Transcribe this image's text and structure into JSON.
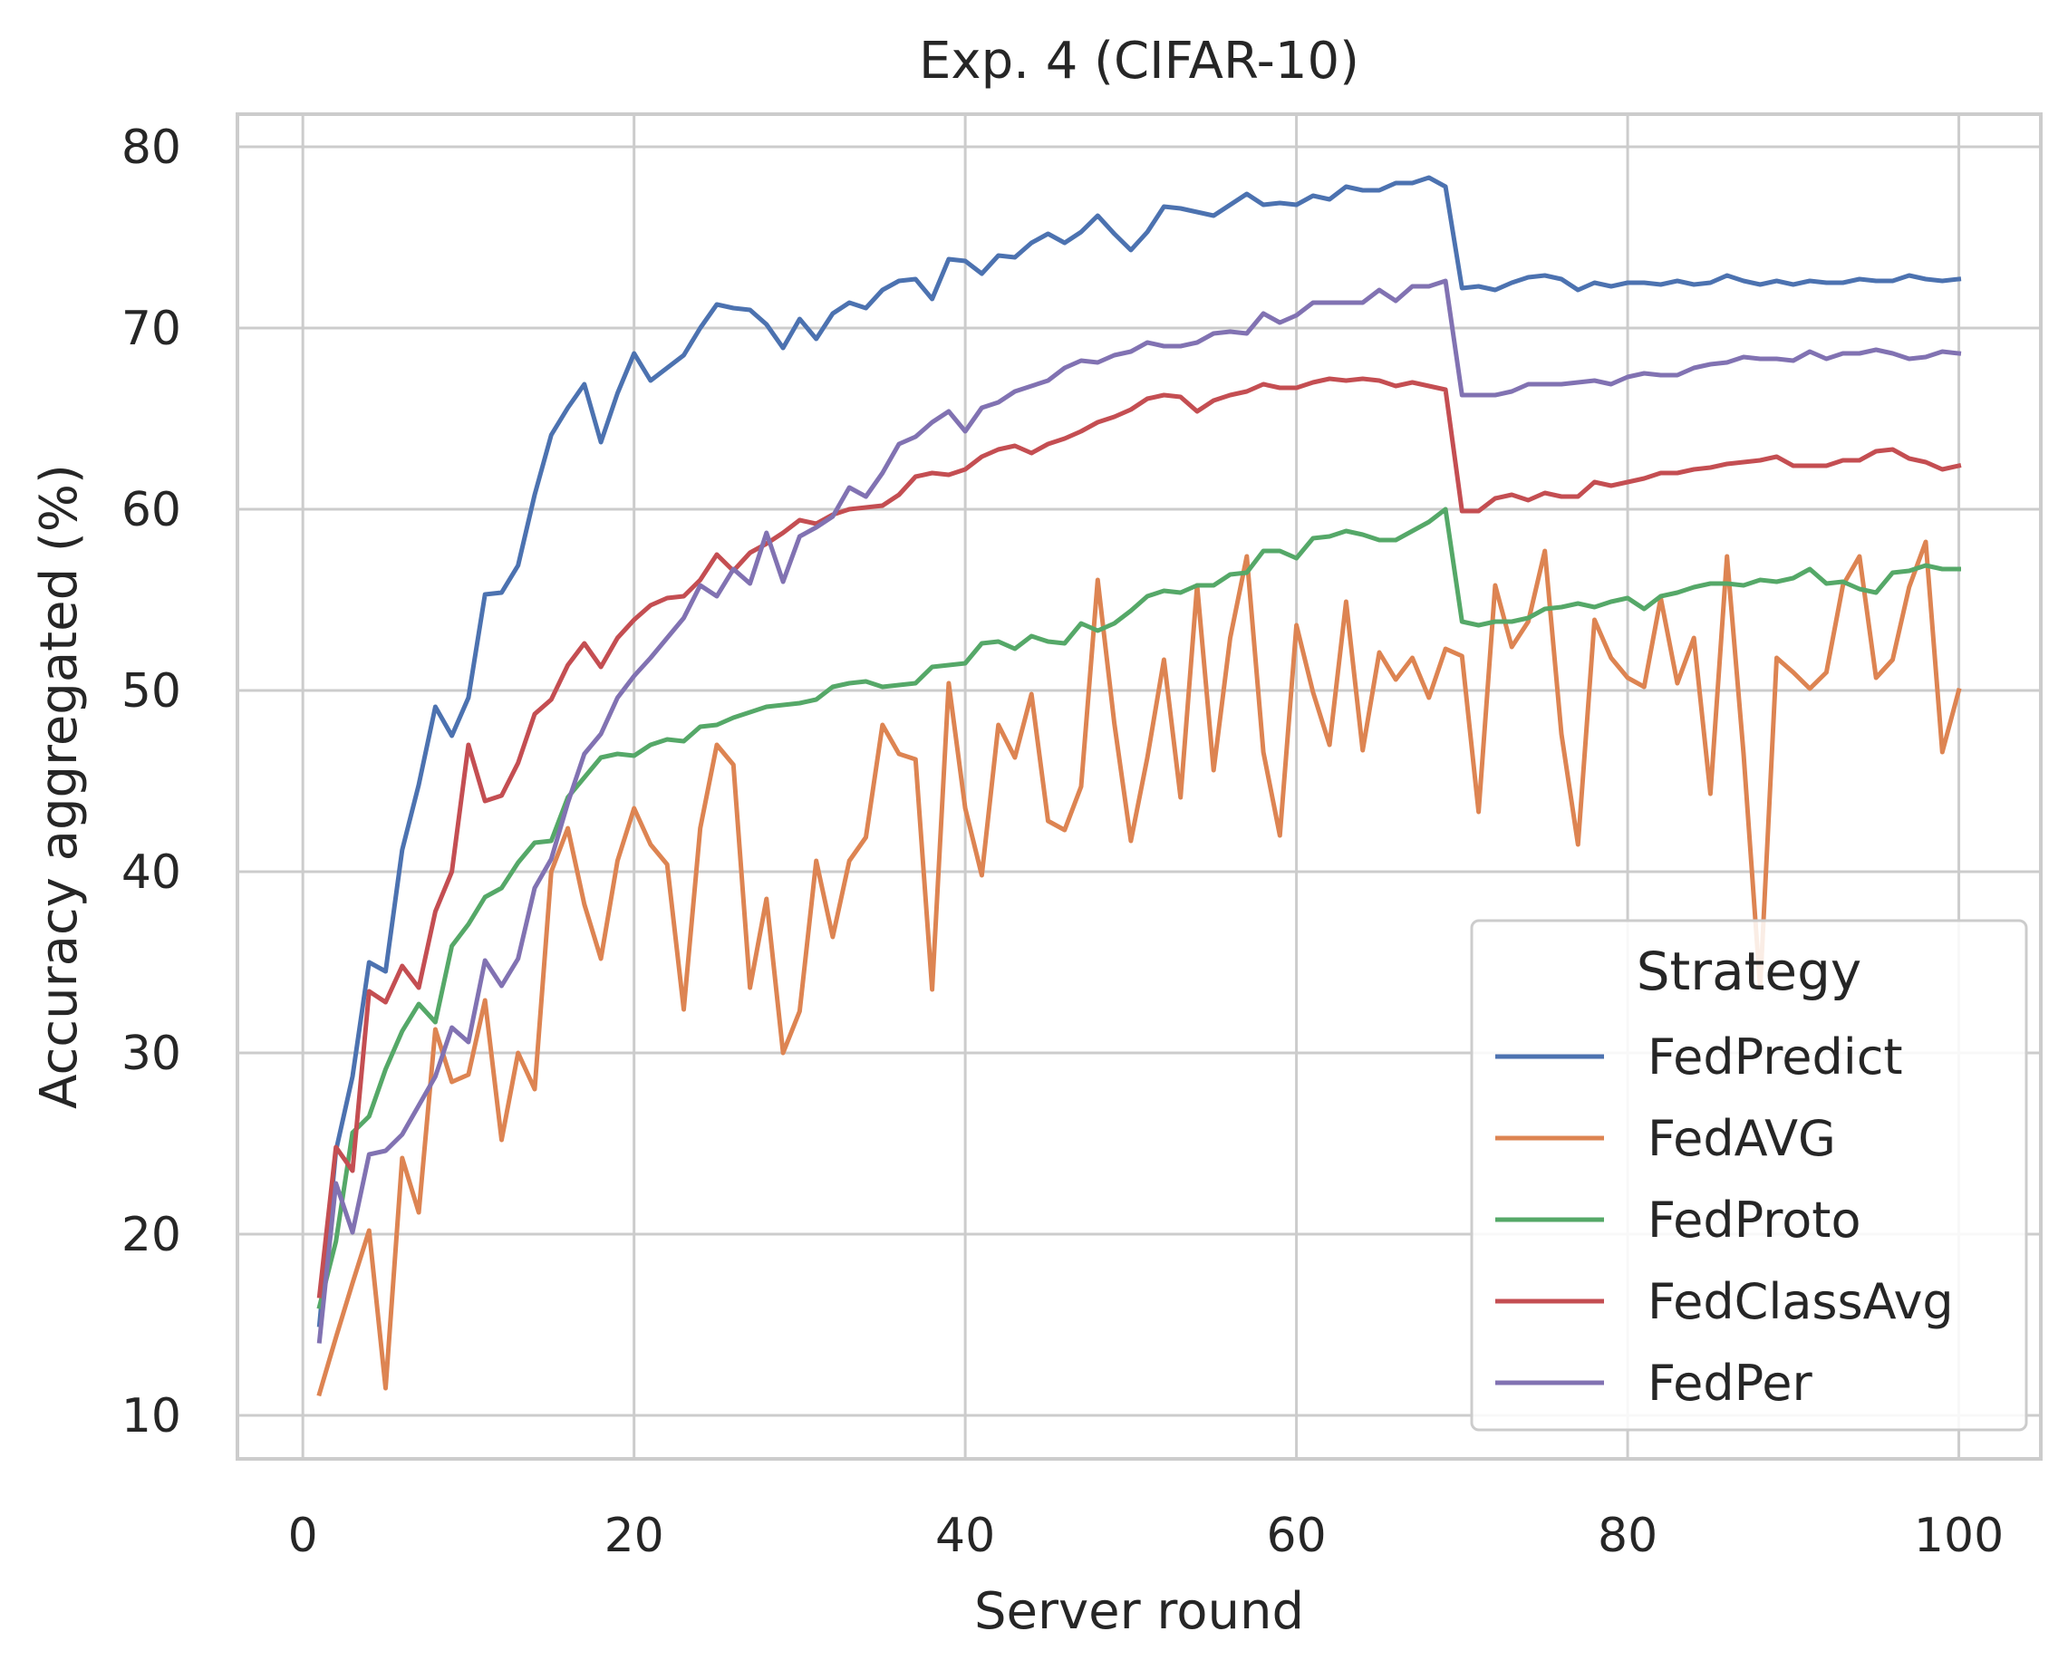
{
  "chart_data": {
    "type": "line",
    "title": "Exp. 4 (CIFAR-10)",
    "xlabel": "Server round",
    "ylabel": "Accuracy aggregated (%)",
    "xlim": [
      -3.95,
      104.95
    ],
    "ylim": [
      7.6,
      81.8
    ],
    "xticks": [
      0,
      20,
      40,
      60,
      80,
      100
    ],
    "yticks": [
      10,
      20,
      30,
      40,
      50,
      60,
      70,
      80
    ],
    "grid": true,
    "legend": {
      "title": "Strategy",
      "position": "lower-right"
    },
    "series": [
      {
        "name": "FedPredict",
        "color": "#4c72b0",
        "values": [
          15.0,
          24.6,
          28.7,
          35.0,
          34.5,
          41.2,
          44.8,
          49.1,
          47.5,
          49.6,
          55.3,
          55.4,
          56.9,
          60.8,
          64.1,
          65.6,
          66.9,
          63.7,
          66.4,
          68.6,
          67.1,
          67.8,
          68.5,
          70.0,
          71.3,
          71.1,
          71.0,
          70.2,
          68.9,
          70.5,
          69.4,
          70.8,
          71.4,
          71.1,
          72.1,
          72.6,
          72.7,
          71.6,
          73.8,
          73.7,
          73.0,
          74.0,
          73.9,
          74.7,
          75.2,
          74.7,
          75.3,
          76.2,
          75.2,
          74.3,
          75.3,
          76.7,
          76.6,
          76.4,
          76.2,
          76.8,
          77.4,
          76.8,
          76.9,
          76.8,
          77.3,
          77.1,
          77.8,
          77.6,
          77.6,
          78.0,
          78.0,
          78.3,
          77.8,
          72.2,
          72.3,
          72.1,
          72.5,
          72.8,
          72.9,
          72.7,
          72.1,
          72.5,
          72.3,
          72.5,
          72.5,
          72.4,
          72.6,
          72.4,
          72.5,
          72.9,
          72.6,
          72.4,
          72.6,
          72.4,
          72.6,
          72.5,
          72.5,
          72.7,
          72.6,
          72.6,
          72.9,
          72.7,
          72.6,
          72.7
        ]
      },
      {
        "name": "FedAVG",
        "color": "#dd8452",
        "values": [
          11.2,
          14.3,
          17.3,
          20.2,
          11.5,
          24.2,
          21.2,
          31.3,
          28.4,
          28.8,
          32.9,
          25.2,
          30.0,
          28.0,
          40.0,
          42.4,
          38.2,
          35.2,
          40.6,
          43.5,
          41.5,
          40.4,
          32.4,
          42.4,
          47.0,
          45.9,
          33.6,
          38.5,
          30.0,
          32.3,
          40.6,
          36.4,
          40.6,
          41.9,
          48.1,
          46.5,
          46.2,
          33.5,
          50.4,
          43.5,
          39.8,
          48.1,
          46.3,
          49.8,
          42.8,
          42.3,
          44.7,
          56.1,
          48.2,
          41.7,
          46.3,
          51.7,
          44.1,
          55.8,
          45.6,
          52.9,
          57.4,
          46.6,
          42.0,
          53.6,
          49.9,
          47.0,
          54.9,
          46.7,
          52.1,
          50.6,
          51.8,
          49.6,
          52.3,
          51.9,
          43.3,
          55.8,
          52.4,
          53.8,
          57.7,
          47.6,
          41.5,
          53.9,
          51.8,
          50.7,
          50.2,
          55.1,
          50.4,
          52.9,
          44.3,
          57.4,
          46.5,
          33.6,
          51.8,
          51.0,
          50.1,
          51.0,
          55.8,
          57.4,
          50.7,
          51.7,
          55.7,
          58.2,
          46.6,
          50.0
        ]
      },
      {
        "name": "FedProto",
        "color": "#55a868",
        "values": [
          16.0,
          19.6,
          25.6,
          26.5,
          29.1,
          31.2,
          32.7,
          31.7,
          35.9,
          37.1,
          38.6,
          39.1,
          40.5,
          41.6,
          41.7,
          44.1,
          45.2,
          46.3,
          46.5,
          46.4,
          47.0,
          47.3,
          47.2,
          48.0,
          48.1,
          48.5,
          48.8,
          49.1,
          49.2,
          49.3,
          49.5,
          50.2,
          50.4,
          50.5,
          50.2,
          50.3,
          50.4,
          51.3,
          51.4,
          51.5,
          52.6,
          52.7,
          52.3,
          53.0,
          52.7,
          52.6,
          53.7,
          53.3,
          53.7,
          54.4,
          55.2,
          55.5,
          55.4,
          55.8,
          55.8,
          56.4,
          56.5,
          57.7,
          57.7,
          57.3,
          58.4,
          58.5,
          58.8,
          58.6,
          58.3,
          58.3,
          58.8,
          59.3,
          60.0,
          53.8,
          53.6,
          53.8,
          53.8,
          54.0,
          54.5,
          54.6,
          54.8,
          54.6,
          54.9,
          55.1,
          54.5,
          55.2,
          55.4,
          55.7,
          55.9,
          55.9,
          55.8,
          56.1,
          56.0,
          56.2,
          56.7,
          55.9,
          56.0,
          55.6,
          55.4,
          56.5,
          56.6,
          56.9,
          56.7,
          56.7
        ]
      },
      {
        "name": "FedClassAvg",
        "color": "#c44e52",
        "values": [
          16.6,
          24.8,
          23.5,
          33.4,
          32.8,
          34.8,
          33.6,
          37.8,
          40.0,
          47.0,
          43.9,
          44.2,
          46.0,
          48.7,
          49.5,
          51.4,
          52.6,
          51.3,
          52.9,
          53.9,
          54.7,
          55.1,
          55.2,
          56.1,
          57.5,
          56.6,
          57.6,
          58.1,
          58.7,
          59.4,
          59.2,
          59.7,
          60.0,
          60.1,
          60.2,
          60.8,
          61.8,
          62.0,
          61.9,
          62.2,
          62.9,
          63.3,
          63.5,
          63.1,
          63.6,
          63.9,
          64.3,
          64.8,
          65.1,
          65.5,
          66.1,
          66.3,
          66.2,
          65.4,
          66.0,
          66.3,
          66.5,
          66.9,
          66.7,
          66.7,
          67.0,
          67.2,
          67.1,
          67.2,
          67.1,
          66.8,
          67.0,
          66.8,
          66.6,
          59.9,
          59.9,
          60.6,
          60.8,
          60.5,
          60.9,
          60.7,
          60.7,
          61.5,
          61.3,
          61.5,
          61.7,
          62.0,
          62.0,
          62.2,
          62.3,
          62.5,
          62.6,
          62.7,
          62.9,
          62.4,
          62.4,
          62.4,
          62.7,
          62.7,
          63.2,
          63.3,
          62.8,
          62.6,
          62.2,
          62.4
        ]
      },
      {
        "name": "FedPer",
        "color": "#8172b2",
        "values": [
          14.1,
          22.8,
          20.1,
          24.4,
          24.6,
          25.5,
          27.1,
          28.7,
          31.4,
          30.6,
          35.1,
          33.7,
          35.2,
          39.1,
          40.7,
          43.8,
          46.5,
          47.6,
          49.6,
          50.8,
          51.8,
          52.9,
          54.0,
          55.8,
          55.2,
          56.7,
          55.9,
          58.7,
          56.0,
          58.5,
          59.0,
          59.6,
          61.2,
          60.7,
          62.0,
          63.6,
          64.0,
          64.8,
          65.4,
          64.3,
          65.6,
          65.9,
          66.5,
          66.8,
          67.1,
          67.8,
          68.2,
          68.1,
          68.5,
          68.7,
          69.2,
          69.0,
          69.0,
          69.2,
          69.7,
          69.8,
          69.7,
          70.8,
          70.3,
          70.7,
          71.4,
          71.4,
          71.4,
          71.4,
          72.1,
          71.5,
          72.3,
          72.3,
          72.6,
          66.3,
          66.3,
          66.3,
          66.5,
          66.9,
          66.9,
          66.9,
          67.0,
          67.1,
          66.9,
          67.3,
          67.5,
          67.4,
          67.4,
          67.8,
          68.0,
          68.1,
          68.4,
          68.3,
          68.3,
          68.2,
          68.7,
          68.3,
          68.6,
          68.6,
          68.8,
          68.6,
          68.3,
          68.4,
          68.7,
          68.6
        ]
      }
    ]
  }
}
